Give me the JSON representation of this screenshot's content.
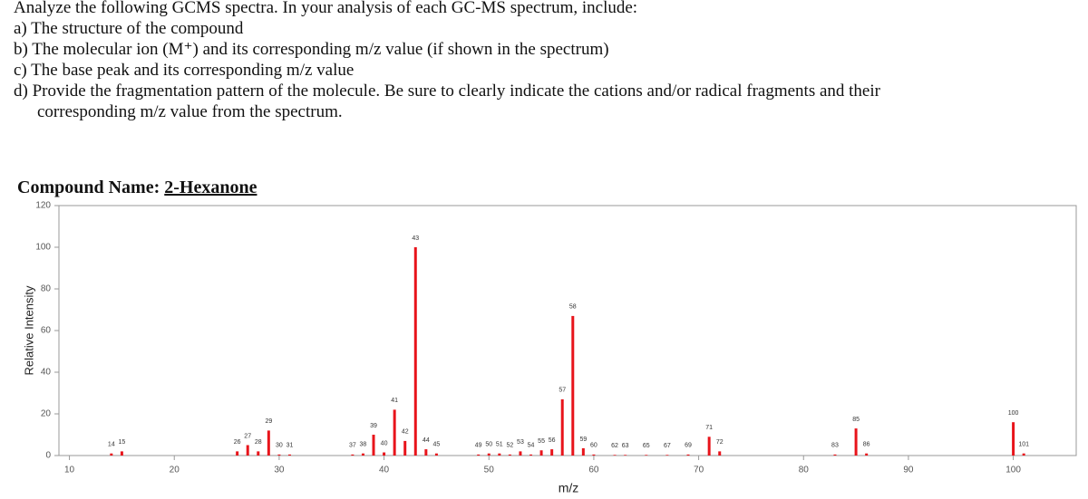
{
  "question": {
    "intro": "Analyze the following GCMS spectra. In your analysis of each GC-MS spectrum, include:",
    "items": [
      "a) The structure of the compound",
      "b) The molecular ion (M⁺) and its corresponding m/z value (if shown in the spectrum)",
      "c) The base peak and its corresponding m/z value",
      "d) Provide the fragmentation pattern of the molecule. Be sure to clearly indicate the cations and/or radical fragments and their corresponding m/z value from the spectrum."
    ]
  },
  "compound": {
    "label": "Compound Name:",
    "name": "2-Hexanone"
  },
  "chart_data": {
    "type": "spectrum",
    "xlabel": "m/z",
    "ylabel": "Relative Intensity",
    "color": "#e8141b",
    "x": [
      14,
      15,
      26,
      27,
      28,
      29,
      30,
      31,
      37,
      38,
      39,
      40,
      41,
      42,
      43,
      44,
      45,
      49,
      50,
      51,
      52,
      53,
      54,
      55,
      56,
      57,
      58,
      59,
      60,
      62,
      63,
      65,
      67,
      69,
      71,
      72,
      83,
      85,
      86,
      100,
      101
    ],
    "values": [
      1,
      2,
      2,
      5,
      2,
      12,
      0.5,
      0.5,
      0.5,
      1,
      10,
      1.5,
      22,
      7,
      100,
      3,
      1,
      0.5,
      1,
      1,
      0.5,
      2,
      0.5,
      2.5,
      3,
      27,
      67,
      3.5,
      0.5,
      0.3,
      0.3,
      0.3,
      0.3,
      0.5,
      9,
      2,
      0.5,
      13,
      1,
      16,
      1
    ],
    "xlim": [
      9,
      106
    ],
    "ylim": [
      0,
      120
    ],
    "xticks": [
      10,
      20,
      30,
      40,
      50,
      60,
      70,
      80,
      90,
      100
    ],
    "yticks": [
      0,
      20,
      40,
      60,
      80,
      100,
      120
    ]
  }
}
